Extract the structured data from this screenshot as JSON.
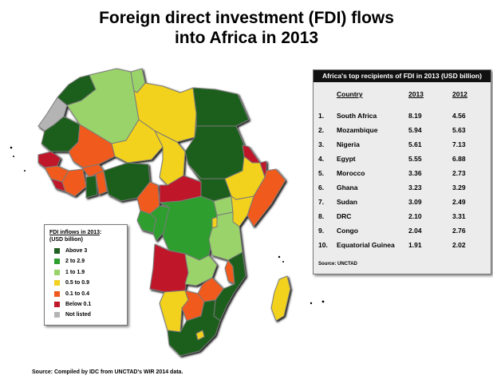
{
  "title": {
    "line1": "Foreign direct investment (FDI) flows",
    "line2": "into Africa in 2013"
  },
  "legend": {
    "title_line1": "FDI inflows in 2013",
    "title_line1_suffix": ":",
    "title_line2": "(USD billion)",
    "items": [
      {
        "label": "Above 3",
        "color": "#1f5f1f"
      },
      {
        "label": "2 to 2.9",
        "color": "#2e9e2e"
      },
      {
        "label": "1 to 1.9",
        "color": "#9ad36a"
      },
      {
        "label": "0.5 to 0.9",
        "color": "#f2d21e"
      },
      {
        "label": "0.1 to 0.4",
        "color": "#f05a1e"
      },
      {
        "label": "Below 0.1",
        "color": "#c0182a"
      },
      {
        "label": "Not listed",
        "color": "#b4b4b4"
      }
    ]
  },
  "table": {
    "title": "Africa's top recipients of FDI in 2013 (USD billion)",
    "col_country": "Country",
    "col_2013": "2013",
    "col_2012": "2012",
    "rows": [
      {
        "rank": "1.",
        "country": "South Africa",
        "y2013": "8.19",
        "y2012": "4.56"
      },
      {
        "rank": "2.",
        "country": "Mozambique",
        "y2013": "5.94",
        "y2012": "5.63"
      },
      {
        "rank": "3.",
        "country": "Nigeria",
        "y2013": "5.61",
        "y2012": "7.13"
      },
      {
        "rank": "4.",
        "country": "Egypt",
        "y2013": "5.55",
        "y2012": "6.88"
      },
      {
        "rank": "5.",
        "country": "Morocco",
        "y2013": "3.36",
        "y2012": "2.73"
      },
      {
        "rank": "6.",
        "country": "Ghana",
        "y2013": "3.23",
        "y2012": "3.29"
      },
      {
        "rank": "7.",
        "country": "Sudan",
        "y2013": "3.09",
        "y2012": "2.49"
      },
      {
        "rank": "8.",
        "country": "DRC",
        "y2013": "2.10",
        "y2012": "3.31"
      },
      {
        "rank": "9.",
        "country": "Congo",
        "y2013": "2.04",
        "y2012": "2.76"
      },
      {
        "rank": "10.",
        "country": "Equatorial Guinea",
        "y2013": "1.91",
        "y2012": "2.02"
      }
    ],
    "source": "Source: UNCTAD"
  },
  "source": "Source: Compiled  by IDC from UNCTAD's WIR 2014 data."
}
